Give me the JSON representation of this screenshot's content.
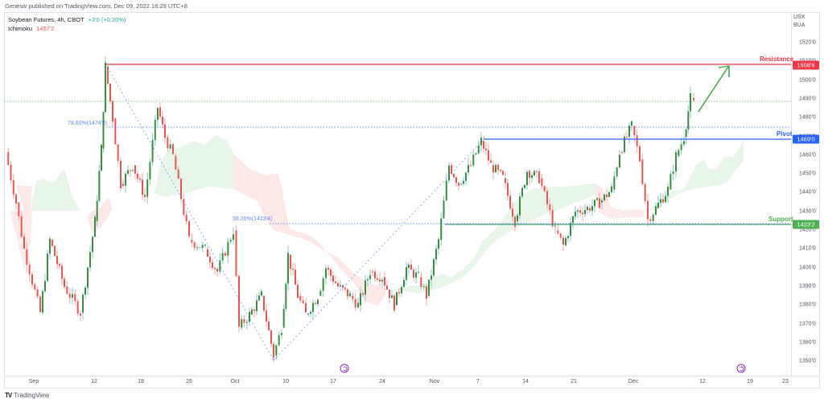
{
  "header": {
    "published": "Genesiv published on TradingView.com, Dec 09, 2022 16:29 UTC+8"
  },
  "legend": {
    "symbol": "Soybean Futures, 4h, CBOT",
    "change": "+3'0 (+0.20%)",
    "indicator": "Ichimoku",
    "indicator_value": "1457'2"
  },
  "price_axis": {
    "currency_line1": "USX",
    "currency_line2": "BUA",
    "ticks": [
      "1520'0",
      "1510'0",
      "1500'0",
      "1490'0",
      "1480'0",
      "1470'0",
      "1460'0",
      "1450'0",
      "1440'0",
      "1430'0",
      "1420'0",
      "1410'0",
      "1400'0",
      "1390'0",
      "1380'0",
      "1370'0",
      "1360'0",
      "1350'0"
    ]
  },
  "time_axis": {
    "ticks": [
      "Sep",
      "12",
      "19",
      "26",
      "Oct",
      "10",
      "17",
      "24",
      "Nov",
      "7",
      "14",
      "21",
      "Dec",
      "12",
      "19",
      "23"
    ]
  },
  "levels": {
    "resistance": {
      "label": "Resistance",
      "price_label": "1508'6",
      "color": "#f23645"
    },
    "pivot": {
      "label": "Pivot",
      "price_label": "1469'0",
      "color": "#2962ff"
    },
    "support": {
      "label": "Support",
      "price_label": "1423'2",
      "color": "#4caf50"
    }
  },
  "fibonacci": {
    "fib786": "78.60%(1474'0)",
    "fib382": "38.20%(1423'4)"
  },
  "footer": {
    "brand": "TradingView",
    "logo_mark": "TV"
  },
  "colors": {
    "up": "#388e3c",
    "down": "#ef5350",
    "cloud_bull": "#e8f5e9",
    "cloud_bear": "#fde8e8",
    "arrow": "#4caf50"
  },
  "chart_data": {
    "type": "candlestick",
    "title": "Soybean Futures, 4h, CBOT",
    "xlabel": "",
    "ylabel": "USX/BUA",
    "ylim": [
      13450,
      15250
    ],
    "x_ticks": [
      "Sep",
      "12",
      "19",
      "26",
      "Oct",
      "10",
      "17",
      "24",
      "Nov",
      "7",
      "14",
      "21",
      "Dec",
      "12",
      "19",
      "23"
    ],
    "y_ticks": [
      15200,
      15100,
      15000,
      14900,
      14800,
      14700,
      14600,
      14500,
      14400,
      14300,
      14200,
      14100,
      14000,
      13900,
      13800,
      13700,
      13600,
      13500
    ],
    "last_change": "+3'0 (+0.20%)",
    "ichimoku": 14572,
    "horizontal_levels": [
      {
        "name": "Resistance",
        "value": 15086
      },
      {
        "name": "Pivot",
        "value": 14690
      },
      {
        "name": "Support",
        "value": 14232
      },
      {
        "name": "Fib 78.6%",
        "value": 14740
      },
      {
        "name": "Fib 38.2%",
        "value": 14234
      }
    ],
    "approx_swing_points": [
      {
        "date": "Sep 1",
        "price": 14620
      },
      {
        "date": "Sep 8",
        "price": 13760
      },
      {
        "date": "Sep 13",
        "price": 15080
      },
      {
        "date": "Sep 21",
        "price": 14860
      },
      {
        "date": "Sep 30",
        "price": 13700
      },
      {
        "date": "Oct 7",
        "price": 13530
      },
      {
        "date": "Oct 12",
        "price": 14070
      },
      {
        "date": "Oct 25",
        "price": 13800
      },
      {
        "date": "Nov 7",
        "price": 14680
      },
      {
        "date": "Nov 18",
        "price": 14120
      },
      {
        "date": "Nov 29",
        "price": 14760
      },
      {
        "date": "Dec 1",
        "price": 14260
      },
      {
        "date": "Dec 8",
        "price": 14910
      }
    ],
    "annotation": "Green arrow projecting up toward Resistance 1508'6"
  }
}
